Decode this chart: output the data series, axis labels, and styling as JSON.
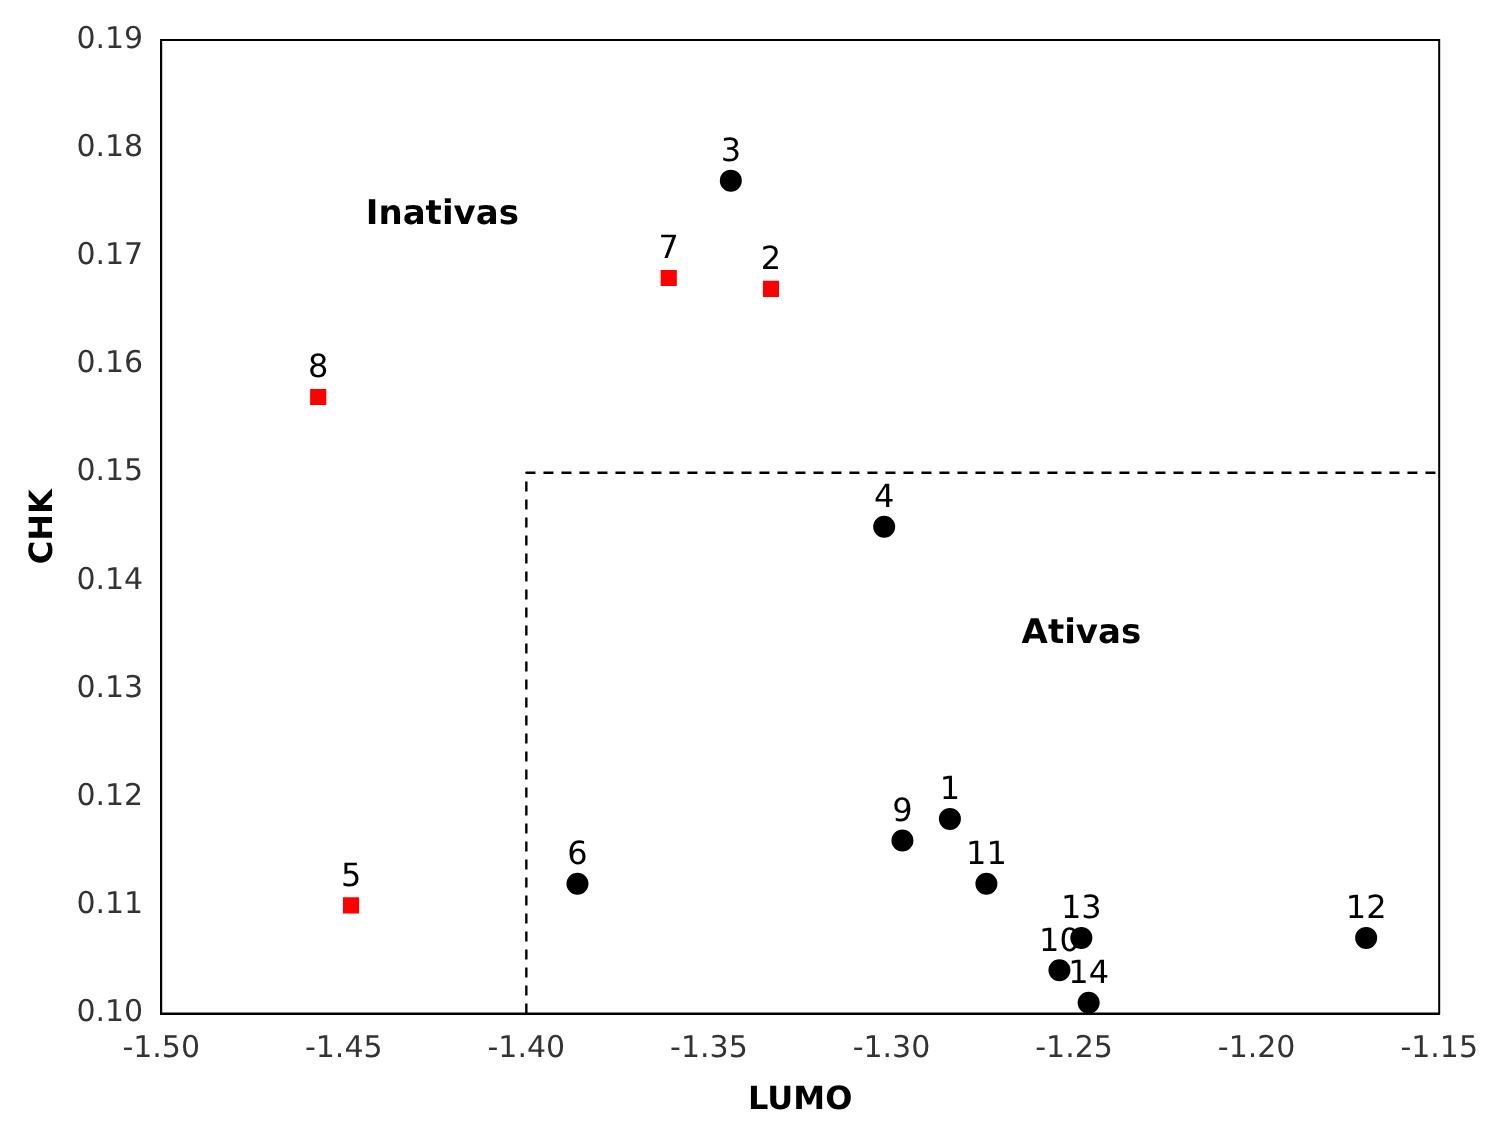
{
  "chart_data": {
    "type": "scatter",
    "xlabel": "LUMO",
    "ylabel": "CHK",
    "xlim": [
      -1.5,
      -1.15
    ],
    "xticks": [
      {
        "value": -1.5,
        "label": "-1.50"
      },
      {
        "value": -1.45,
        "label": "-1.45"
      },
      {
        "value": -1.4,
        "label": "-1.40"
      },
      {
        "value": -1.35,
        "label": "-1.35"
      },
      {
        "value": -1.3,
        "label": "-1.30"
      },
      {
        "value": -1.25,
        "label": "-1.25"
      },
      {
        "value": -1.2,
        "label": "-1.20"
      },
      {
        "value": -1.15,
        "label": "-1.15"
      }
    ],
    "ylim": [
      0.1,
      0.19
    ],
    "yticks": [
      {
        "value": 0.1,
        "label": "0.10"
      },
      0.11,
      0.12,
      0.13,
      0.14,
      0.15,
      0.16,
      0.17,
      0.18,
      0.19
    ],
    "grid": false,
    "legend": false,
    "series": [
      {
        "type": "scatter",
        "marker": "circle",
        "color": "#000000",
        "x": [
          -1.284,
          -1.344,
          -1.302,
          -1.386,
          -1.297,
          -1.254,
          -1.274,
          -1.17,
          -1.248,
          -1.246
        ],
        "values": [
          0.118,
          0.177,
          0.145,
          0.112,
          0.116,
          0.104,
          0.112,
          0.107,
          0.107,
          0.101
        ]
      },
      {
        "type": "scatter",
        "marker": "square",
        "color": "#ff0000",
        "x": [
          -1.333,
          -1.448,
          -1.361,
          -1.457
        ],
        "values": [
          0.167,
          0.11,
          0.168,
          0.157
        ]
      },
      {
        "type": "line",
        "line_style": "dashed",
        "marker": "none",
        "color": "#000000",
        "x": [
          -1.4,
          -1.4,
          -1.15
        ],
        "values": [
          0.1,
          0.15,
          0.15
        ]
      }
    ],
    "annotations": [
      "Inativas",
      "Ativas",
      {
        "text": "1",
        "x": -1.284,
        "y": 0.118
      },
      {
        "text": "2",
        "x": -1.333,
        "y": 0.167
      },
      {
        "text": "3",
        "x": -1.344,
        "y": 0.177
      },
      {
        "text": "4",
        "x": -1.302,
        "y": 0.145
      },
      {
        "text": "5",
        "x": -1.448,
        "y": 0.11
      },
      {
        "text": "6",
        "x": -1.386,
        "y": 0.112
      },
      {
        "text": "7",
        "x": -1.361,
        "y": 0.168
      },
      {
        "text": "8",
        "x": -1.457,
        "y": 0.157
      },
      {
        "text": "9",
        "x": -1.297,
        "y": 0.116
      },
      {
        "text": "10",
        "x": -1.254,
        "y": 0.104
      },
      {
        "text": "11",
        "x": -1.274,
        "y": 0.112
      },
      {
        "text": "12",
        "x": -1.17,
        "y": 0.107
      },
      {
        "text": "13",
        "x": -1.248,
        "y": 0.107
      },
      {
        "text": "14",
        "x": -1.246,
        "y": 0.101
      }
    ]
  }
}
